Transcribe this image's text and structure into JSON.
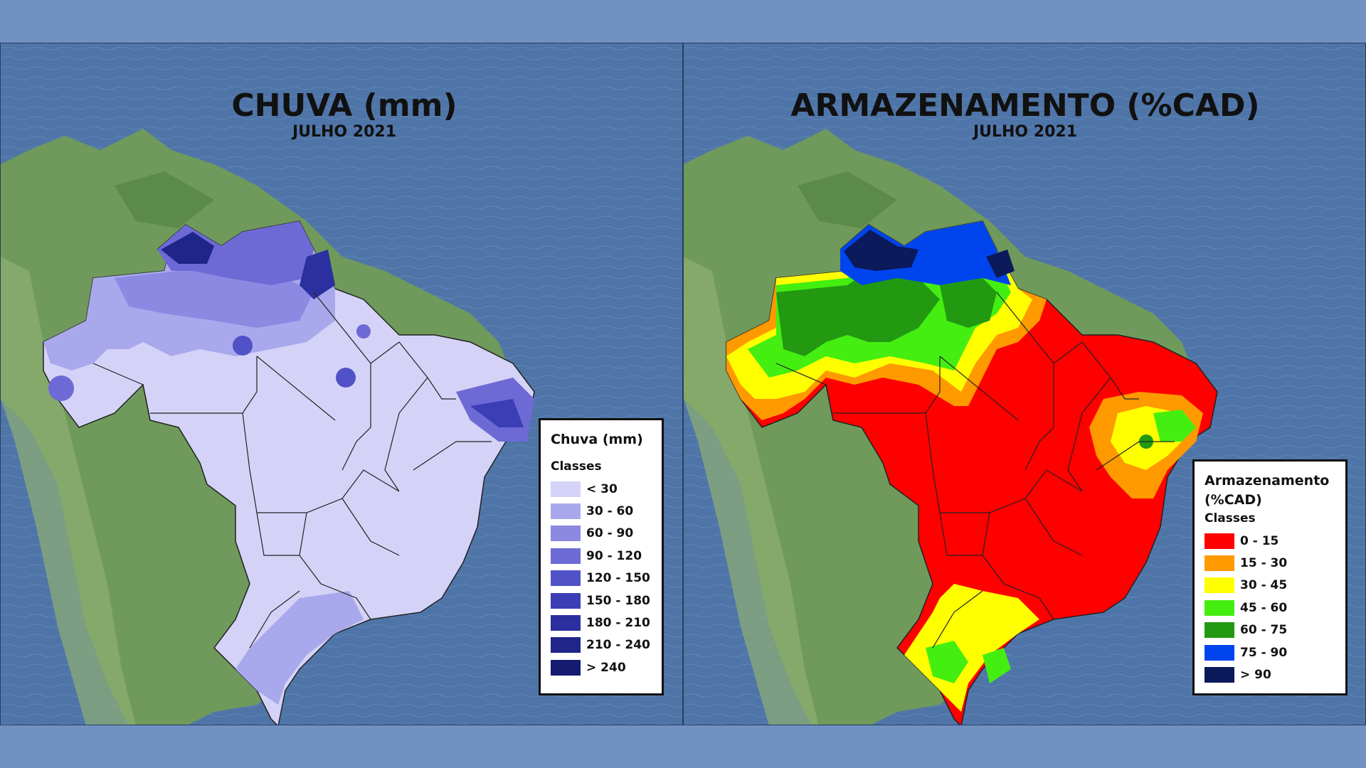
{
  "maps": [
    {
      "title": "CHUVA (mm)",
      "subtitle": "JULHO 2021",
      "legend": {
        "title": "Chuva (mm)",
        "classes_label": "Classes",
        "items": [
          {
            "label": "< 30",
            "color": "#d4d3f7"
          },
          {
            "label": "30 - 60",
            "color": "#aaa8ec"
          },
          {
            "label": "60 - 90",
            "color": "#8c89e2"
          },
          {
            "label": "90 - 120",
            "color": "#6d6ad6"
          },
          {
            "label": "120 - 150",
            "color": "#5152c8"
          },
          {
            "label": "150 - 180",
            "color": "#3c3eb5"
          },
          {
            "label": "180 - 210",
            "color": "#2b2f9f"
          },
          {
            "label": "210 - 240",
            "color": "#1f2589"
          },
          {
            "label": "> 240",
            "color": "#141b70"
          }
        ]
      }
    },
    {
      "title": "ARMAZENAMENTO (%CAD)",
      "subtitle": "JULHO 2021",
      "legend": {
        "title": "Armazenamento (%CAD)",
        "classes_label": "Classes",
        "items": [
          {
            "label": "0 - 15",
            "color": "#ff0000"
          },
          {
            "label": "15 - 30",
            "color": "#ff9900"
          },
          {
            "label": "30 - 45",
            "color": "#ffff00"
          },
          {
            "label": "45 - 60",
            "color": "#44ee11"
          },
          {
            "label": "60 - 75",
            "color": "#229911"
          },
          {
            "label": "75 - 90",
            "color": "#0044ee"
          },
          {
            "label": "> 90",
            "color": "#0a1a5a"
          }
        ]
      }
    }
  ]
}
